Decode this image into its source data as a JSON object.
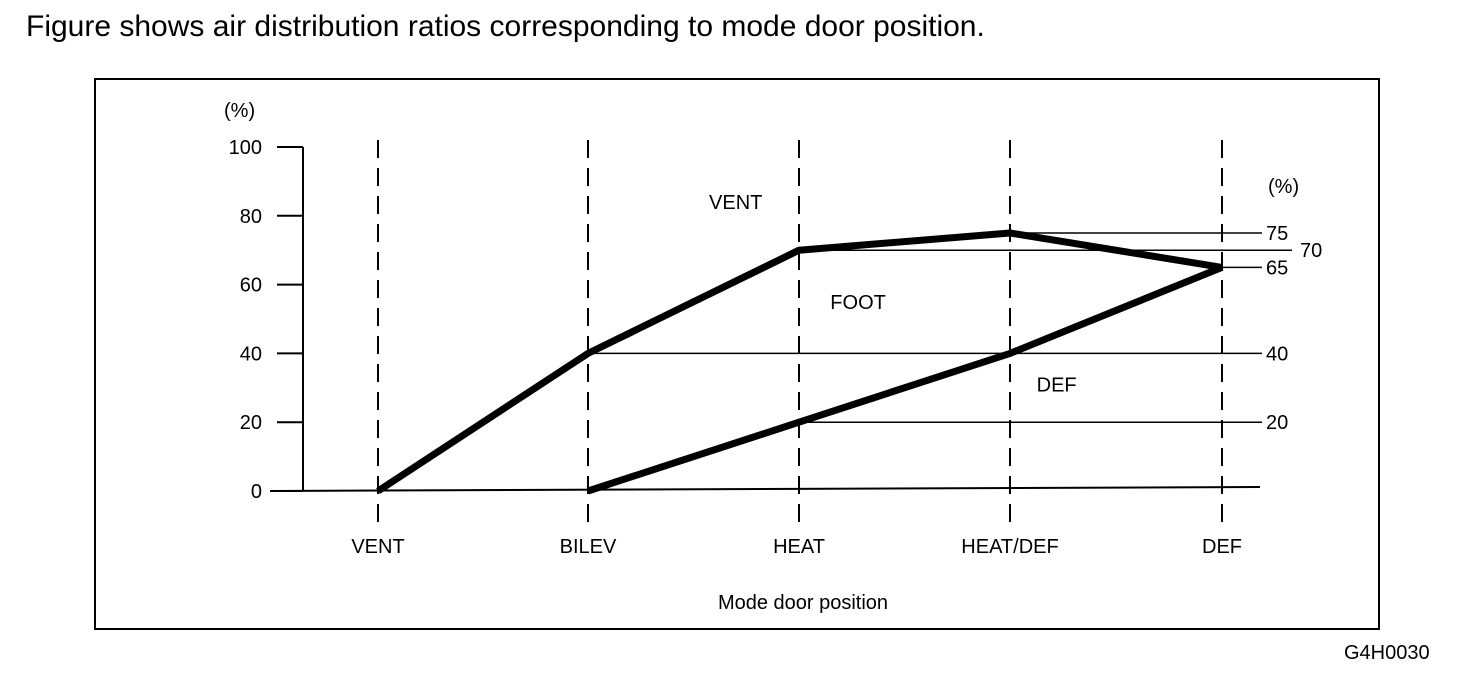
{
  "caption": "Figure shows air distribution ratios corresponding to mode door position.",
  "figure_code": "G4H0030",
  "chart_data": {
    "type": "area",
    "xlabel": "Mode door position",
    "ylabel": "(%)",
    "right_axis_label": "(%)",
    "categories": [
      "VENT",
      "BILEV",
      "HEAT",
      "HEAT/DEF",
      "DEF"
    ],
    "ylim": [
      0,
      100
    ],
    "yticks": [
      0,
      20,
      40,
      60,
      80,
      100
    ],
    "boundaries": [
      {
        "values": [
          0,
          40,
          70,
          75,
          65
        ]
      },
      {
        "values": [
          0,
          0,
          20,
          40,
          65
        ]
      }
    ],
    "regions": [
      {
        "name": "VENT",
        "category_pos": 1.7,
        "value": 84
      },
      {
        "name": "FOOT",
        "category_pos": 2.28,
        "value": 55
      },
      {
        "name": "DEF",
        "category_pos": 3.22,
        "value": 31
      }
    ],
    "reference_levels": [
      75,
      70,
      65,
      40,
      20
    ],
    "reference_level_labels": [
      "75",
      "70",
      "65",
      "40",
      "20"
    ],
    "grid": "vertical dashed at each mode position"
  }
}
